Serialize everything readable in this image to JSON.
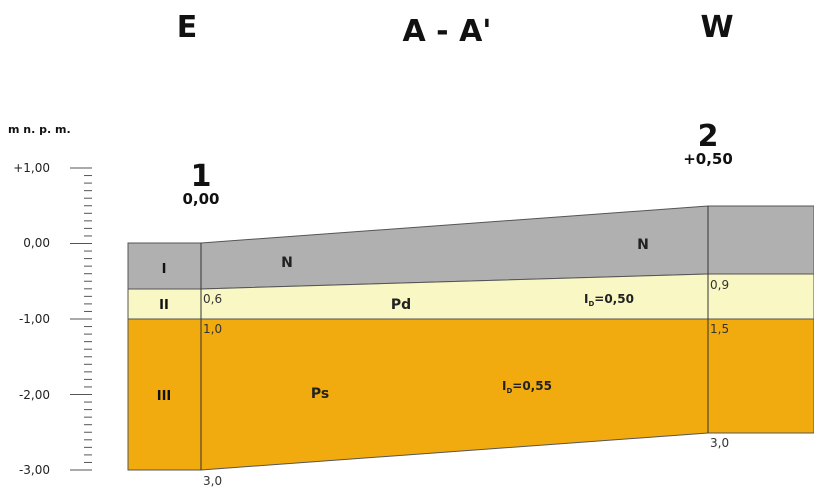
{
  "header": {
    "left": "E",
    "center": "A - A'",
    "right": "W"
  },
  "axis": {
    "unit": "m n. p. m.",
    "ticks": [
      "+1,00",
      "0,00",
      "-1,00",
      "-2,00",
      "-3,00"
    ]
  },
  "boreholes": [
    {
      "number": "1",
      "elevation": "0,00"
    },
    {
      "number": "2",
      "elevation": "+0,50"
    }
  ],
  "layers": [
    {
      "id": "I",
      "soil": "N",
      "soil_right": "N",
      "color": "#b0b0b0"
    },
    {
      "id": "II",
      "soil": "Pd",
      "index_label": "I",
      "index_sub": "D",
      "index_value": "=0,50",
      "color": "#f9f8c4"
    },
    {
      "id": "III",
      "soil": "Ps",
      "index_label": "I",
      "index_sub": "D",
      "index_value": "=0,55",
      "color": "#f2ab0e"
    }
  ],
  "depth_labels": {
    "bh1": [
      "0,6",
      "1,0",
      "3,0"
    ],
    "bh2": [
      "0,9",
      "1,5",
      "3,0"
    ]
  }
}
